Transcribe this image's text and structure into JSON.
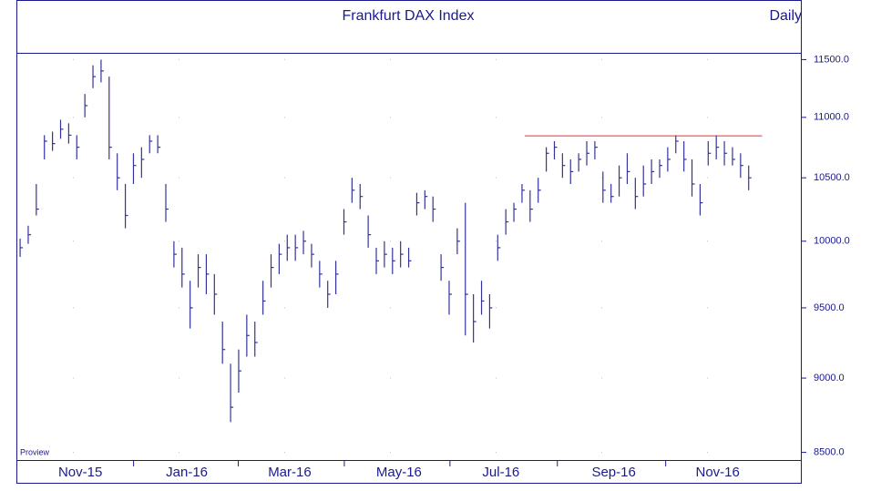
{
  "chart_data": {
    "type": "ohlc",
    "title": "Frankfurt DAX Index",
    "subtitle": "Daily",
    "annotation": "Proview",
    "log_scale": true,
    "grid": true,
    "color": "#33339a",
    "x": [
      0,
      3,
      6,
      9,
      12,
      15,
      18,
      21,
      24,
      27,
      30,
      33,
      36,
      39,
      42,
      45,
      48,
      51,
      54,
      57,
      60,
      63,
      66,
      69,
      72,
      75,
      78,
      81,
      84,
      87,
      90,
      93,
      96,
      99,
      102,
      105,
      108,
      111,
      114,
      117,
      120,
      123,
      126,
      129,
      132,
      135,
      138,
      141,
      144,
      147,
      150,
      153,
      156,
      159,
      162,
      165,
      168,
      171,
      174,
      177,
      180,
      183,
      186,
      189,
      192,
      195,
      198,
      201,
      204,
      207,
      210,
      213,
      216,
      219,
      222,
      225,
      228,
      231,
      234,
      237,
      240,
      243,
      246,
      249,
      252,
      255,
      258,
      261,
      264,
      267,
      270
    ],
    "high": [
      10020,
      10120,
      10450,
      10850,
      10880,
      10980,
      10950,
      10850,
      11200,
      11450,
      11500,
      11350,
      10700,
      10450,
      10700,
      10750,
      10850,
      10850,
      10450,
      10000,
      9950,
      9700,
      9900,
      9900,
      9750,
      9400,
      9100,
      9200,
      9450,
      9400,
      9700,
      9900,
      9980,
      10050,
      10050,
      10080,
      9980,
      9850,
      9700,
      9850,
      10250,
      10500,
      10450,
      10200,
      9950,
      10000,
      9950,
      10000,
      9950,
      10380,
      10400,
      10350,
      9900,
      9700,
      10100,
      10300,
      9600,
      9700,
      9600,
      10050,
      10250,
      10300,
      10450,
      10400,
      10500,
      10750,
      10800,
      10700,
      10650,
      10700,
      10800,
      10800,
      10550,
      10450,
      10600,
      10700,
      10500,
      10600,
      10650,
      10650,
      10750,
      10850,
      10800,
      10650,
      10450,
      10800,
      10850,
      10800,
      10750,
      10700,
      10600
    ],
    "low": [
      9880,
      9980,
      10200,
      10650,
      10720,
      10820,
      10780,
      10650,
      11000,
      11250,
      11300,
      10650,
      10400,
      10100,
      10450,
      10500,
      10700,
      10700,
      10150,
      9800,
      9650,
      9350,
      9650,
      9600,
      9450,
      9100,
      8700,
      8900,
      9150,
      9150,
      9450,
      9650,
      9750,
      9850,
      9850,
      9900,
      9800,
      9650,
      9500,
      9600,
      10050,
      10300,
      10250,
      9950,
      9750,
      9800,
      9750,
      9800,
      9800,
      10200,
      10250,
      10150,
      9700,
      9450,
      9900,
      9300,
      9250,
      9450,
      9350,
      9850,
      10050,
      10150,
      10300,
      10150,
      10300,
      10550,
      10650,
      10500,
      10450,
      10550,
      10600,
      10650,
      10300,
      10300,
      10350,
      10450,
      10250,
      10350,
      10450,
      10500,
      10550,
      10700,
      10550,
      10350,
      10200,
      10600,
      10650,
      10600,
      10600,
      10500,
      10400
    ],
    "close": [
      9950,
      10050,
      10250,
      10800,
      10780,
      10900,
      10850,
      10750,
      11100,
      11350,
      11400,
      10750,
      10500,
      10200,
      10600,
      10650,
      10800,
      10750,
      10250,
      9900,
      9750,
      9500,
      9800,
      9750,
      9600,
      9200,
      8800,
      9050,
      9300,
      9250,
      9550,
      9800,
      9900,
      9950,
      9950,
      10000,
      9900,
      9750,
      9600,
      9750,
      10150,
      10400,
      10350,
      10050,
      9850,
      9900,
      9850,
      9900,
      9850,
      10300,
      10350,
      10250,
      9800,
      9600,
      10000,
      9600,
      9400,
      9550,
      9500,
      9950,
      10150,
      10250,
      10400,
      10250,
      10400,
      10700,
      10750,
      10600,
      10550,
      10650,
      10700,
      10750,
      10400,
      10350,
      10500,
      10550,
      10350,
      10450,
      10550,
      10600,
      10650,
      10800,
      10650,
      10450,
      10300,
      10700,
      10750,
      10700,
      10650,
      10600,
      10500
    ],
    "hline": {
      "value": 10845,
      "x": [
        187,
        275
      ],
      "color": "#e03030"
    },
    "xlim": [
      -0.7,
      289
    ],
    "xticks": [
      {
        "value": 22.3,
        "label": "Nov-15"
      },
      {
        "value": 61.8,
        "label": "Jan-16"
      },
      {
        "value": 99.9,
        "label": "Mar-16"
      },
      {
        "value": 140.4,
        "label": "May-16"
      },
      {
        "value": 178.2,
        "label": "Jul-16"
      },
      {
        "value": 220,
        "label": "Sep-16"
      },
      {
        "value": 258.5,
        "label": "Nov-16"
      }
    ],
    "ylim": [
      8450,
      11560
    ],
    "yticks": [
      {
        "value": 8500,
        "label": "8500.0"
      },
      {
        "value": 9000,
        "label": "9000.0"
      },
      {
        "value": 9500,
        "label": "9500.0"
      },
      {
        "value": 10000,
        "label": "10000.0"
      },
      {
        "value": 10500,
        "label": "10500.0"
      },
      {
        "value": 11000,
        "label": "11000.0"
      },
      {
        "value": 11500,
        "label": "11500.0"
      }
    ]
  }
}
